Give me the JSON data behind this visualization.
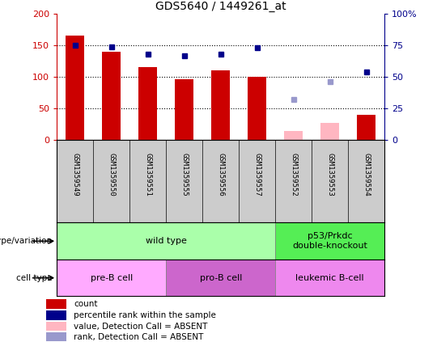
{
  "title": "GDS5640 / 1449261_at",
  "samples": [
    "GSM1359549",
    "GSM1359550",
    "GSM1359551",
    "GSM1359555",
    "GSM1359556",
    "GSM1359557",
    "GSM1359552",
    "GSM1359553",
    "GSM1359554"
  ],
  "counts": [
    165,
    140,
    115,
    97,
    110,
    100,
    null,
    null,
    40
  ],
  "counts_absent": [
    null,
    null,
    null,
    null,
    null,
    null,
    15,
    28,
    null
  ],
  "pct_ranks": [
    75,
    74,
    68,
    67,
    68,
    73,
    null,
    null,
    54
  ],
  "pct_ranks_absent": [
    null,
    null,
    null,
    null,
    null,
    null,
    32,
    46,
    null
  ],
  "ylim_left": [
    0,
    200
  ],
  "ylim_right": [
    0,
    100
  ],
  "yticks_left": [
    0,
    50,
    100,
    150,
    200
  ],
  "yticks_right": [
    0,
    25,
    50,
    75,
    100
  ],
  "ytick_labels_left": [
    "0",
    "50",
    "100",
    "150",
    "200"
  ],
  "ytick_labels_right": [
    "0",
    "25",
    "50",
    "75",
    "100%"
  ],
  "bar_color": "#cc0000",
  "bar_absent_color": "#ffb6c1",
  "dot_color": "#00008b",
  "dot_absent_color": "#9999cc",
  "genotype_labels": [
    {
      "label": "wild type",
      "start": 0,
      "end": 6,
      "color": "#aaffaa"
    },
    {
      "label": "p53/Prkdc\ndouble-knockout",
      "start": 6,
      "end": 9,
      "color": "#55ee55"
    }
  ],
  "celltype_labels": [
    {
      "label": "pre-B cell",
      "start": 0,
      "end": 3,
      "color": "#ffaaff"
    },
    {
      "label": "pro-B cell",
      "start": 3,
      "end": 6,
      "color": "#cc66cc"
    },
    {
      "label": "leukemic B-cell",
      "start": 6,
      "end": 9,
      "color": "#ee88ee"
    }
  ],
  "legend_items": [
    {
      "label": "count",
      "color": "#cc0000"
    },
    {
      "label": "percentile rank within the sample",
      "color": "#00008b"
    },
    {
      "label": "value, Detection Call = ABSENT",
      "color": "#ffb6c1"
    },
    {
      "label": "rank, Detection Call = ABSENT",
      "color": "#9999cc"
    }
  ],
  "bar_width": 0.5
}
